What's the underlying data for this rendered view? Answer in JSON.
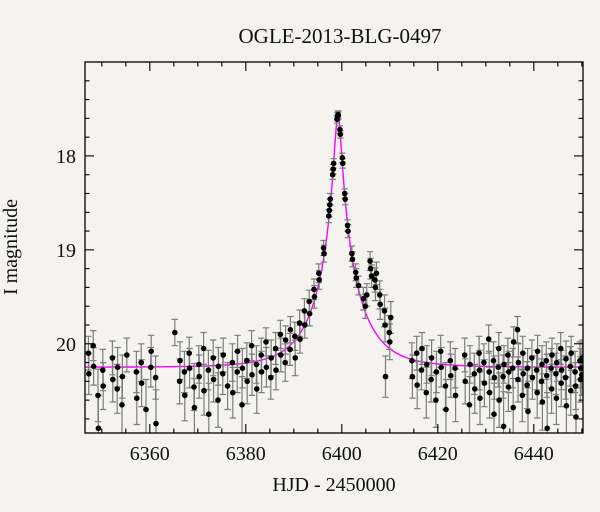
{
  "figure": {
    "background_color": "#f4f3f0",
    "frame_color": "#000000"
  },
  "chart_data": {
    "type": "scatter",
    "title": "OGLE-2013-BLG-0497",
    "xlabel": "HJD - 2450000",
    "ylabel": "I magnitude",
    "xlim": [
      6346.5,
      6450.25
    ],
    "ylim": [
      17.0,
      20.95
    ],
    "y_axis_inverted": true,
    "grid": false,
    "legend": null,
    "x_major_ticks": [
      6360,
      6380,
      6400,
      6420,
      6440
    ],
    "x_major_tick_labels": [
      "6360",
      "6380",
      "6400",
      "6420",
      "6440"
    ],
    "x_minor_tick_step": 5,
    "y_major_ticks": [
      18,
      19,
      20
    ],
    "y_major_tick_labels": [
      "18",
      "19",
      "20"
    ],
    "y_minor_tick_step": 0.2,
    "point_color": "#000000",
    "errorbar_color": "#7d7d7d",
    "model": {
      "name": "point-lens-model-curve",
      "type": "paczynski",
      "t0": 6399.2,
      "tE": 8.5,
      "u0": 0.085,
      "I_baseline": 20.25,
      "I_peak": 17.57,
      "color": "#ff00ff"
    },
    "points_format": [
      "hjd_minus_2450000",
      "I_mag",
      "I_err"
    ],
    "points": [
      [
        6347.2,
        20.1,
        0.18
      ],
      [
        6347.3,
        20.32,
        0.22
      ],
      [
        6348.2,
        20.02,
        0.16
      ],
      [
        6348.3,
        20.24,
        0.2
      ],
      [
        6349.2,
        20.55,
        0.28
      ],
      [
        6349.3,
        20.9,
        0.35
      ],
      [
        6350.2,
        20.28,
        0.22
      ],
      [
        6350.3,
        20.45,
        0.25
      ],
      [
        6352.2,
        20.15,
        0.18
      ],
      [
        6352.3,
        20.38,
        0.24
      ],
      [
        6353.2,
        20.48,
        0.26
      ],
      [
        6353.3,
        20.25,
        0.21
      ],
      [
        6354.2,
        20.65,
        0.3
      ],
      [
        6354.3,
        20.35,
        0.23
      ],
      [
        6355.2,
        20.12,
        0.18
      ],
      [
        6357.2,
        20.3,
        0.22
      ],
      [
        6357.3,
        20.58,
        0.28
      ],
      [
        6358.2,
        20.2,
        0.2
      ],
      [
        6358.3,
        20.42,
        0.25
      ],
      [
        6359.2,
        20.7,
        0.32
      ],
      [
        6360.2,
        20.25,
        0.21
      ],
      [
        6360.3,
        20.08,
        0.17
      ],
      [
        6361.2,
        20.36,
        0.23
      ],
      [
        6361.3,
        20.85,
        0.36
      ],
      [
        6365.2,
        19.88,
        0.14
      ],
      [
        6366.2,
        20.4,
        0.24
      ],
      [
        6366.3,
        20.18,
        0.2
      ],
      [
        6367.2,
        20.3,
        0.22
      ],
      [
        6367.3,
        20.55,
        0.27
      ],
      [
        6368.2,
        20.1,
        0.17
      ],
      [
        6368.3,
        20.26,
        0.21
      ],
      [
        6369.2,
        20.46,
        0.25
      ],
      [
        6369.3,
        20.68,
        0.31
      ],
      [
        6370.2,
        20.22,
        0.2
      ],
      [
        6370.3,
        20.35,
        0.23
      ],
      [
        6371.2,
        20.05,
        0.17
      ],
      [
        6371.3,
        20.5,
        0.26
      ],
      [
        6372.2,
        20.28,
        0.21
      ],
      [
        6372.3,
        20.75,
        0.33
      ],
      [
        6373.2,
        20.15,
        0.19
      ],
      [
        6373.3,
        20.38,
        0.24
      ],
      [
        6374.2,
        20.6,
        0.29
      ],
      [
        6374.3,
        20.24,
        0.2
      ],
      [
        6375.2,
        20.32,
        0.22
      ],
      [
        6375.3,
        20.12,
        0.18
      ],
      [
        6376.2,
        20.45,
        0.25
      ],
      [
        6377.2,
        20.2,
        0.2
      ],
      [
        6377.3,
        20.52,
        0.27
      ],
      [
        6378.2,
        20.3,
        0.22
      ],
      [
        6378.3,
        20.08,
        0.17
      ],
      [
        6379.2,
        20.65,
        0.3
      ],
      [
        6379.3,
        20.26,
        0.21
      ],
      [
        6380.2,
        20.18,
        0.19
      ],
      [
        6380.3,
        20.4,
        0.24
      ],
      [
        6381.2,
        20.02,
        0.16
      ],
      [
        6381.3,
        20.33,
        0.22
      ],
      [
        6382.2,
        20.22,
        0.2
      ],
      [
        6382.3,
        20.48,
        0.26
      ],
      [
        6383.2,
        20.12,
        0.18
      ],
      [
        6383.3,
        20.3,
        0.22
      ],
      [
        6384.2,
        19.98,
        0.15
      ],
      [
        6384.3,
        20.25,
        0.21
      ],
      [
        6385.2,
        20.36,
        0.23
      ],
      [
        6385.3,
        20.15,
        0.19
      ],
      [
        6386.2,
        20.05,
        0.17
      ],
      [
        6386.3,
        20.28,
        0.21
      ],
      [
        6387.2,
        19.9,
        0.15
      ],
      [
        6387.3,
        20.12,
        0.18
      ],
      [
        6388.2,
        20.2,
        0.2
      ],
      [
        6388.3,
        19.96,
        0.15
      ],
      [
        6389.2,
        20.06,
        0.17
      ],
      [
        6389.3,
        19.85,
        0.14
      ],
      [
        6390.2,
        19.92,
        0.15
      ],
      [
        6390.3,
        20.15,
        0.19
      ],
      [
        6391.2,
        19.78,
        0.14
      ],
      [
        6391.3,
        19.95,
        0.15
      ],
      [
        6392.2,
        19.65,
        0.13
      ],
      [
        6392.3,
        19.8,
        0.14
      ],
      [
        6393.2,
        19.55,
        0.12
      ],
      [
        6393.3,
        19.68,
        0.13
      ],
      [
        6394.2,
        19.42,
        0.11
      ],
      [
        6394.3,
        19.5,
        0.12
      ],
      [
        6395.2,
        19.25,
        0.1
      ],
      [
        6395.3,
        19.32,
        0.1
      ],
      [
        6396.2,
        18.98,
        0.08
      ],
      [
        6396.3,
        19.04,
        0.09
      ],
      [
        6397.3,
        18.64,
        0.07
      ],
      [
        6397.4,
        18.58,
        0.07
      ],
      [
        6397.5,
        18.52,
        0.06
      ],
      [
        6397.6,
        18.46,
        0.06
      ],
      [
        6398.1,
        18.2,
        0.05
      ],
      [
        6398.2,
        18.14,
        0.05
      ],
      [
        6398.3,
        18.08,
        0.05
      ],
      [
        6399.0,
        17.61,
        0.04
      ],
      [
        6399.1,
        17.58,
        0.04
      ],
      [
        6399.2,
        17.56,
        0.04
      ],
      [
        6399.3,
        17.57,
        0.04
      ],
      [
        6399.6,
        17.72,
        0.04
      ],
      [
        6399.7,
        17.77,
        0.04
      ],
      [
        6400.1,
        18.02,
        0.05
      ],
      [
        6400.2,
        18.08,
        0.05
      ],
      [
        6400.6,
        18.4,
        0.05
      ],
      [
        6400.7,
        18.46,
        0.06
      ],
      [
        6401.2,
        18.74,
        0.06
      ],
      [
        6401.3,
        18.8,
        0.07
      ],
      [
        6402.1,
        19.04,
        0.08
      ],
      [
        6402.2,
        19.1,
        0.08
      ],
      [
        6402.9,
        19.24,
        0.09
      ],
      [
        6403.0,
        19.3,
        0.1
      ],
      [
        6403.5,
        19.38,
        0.1
      ],
      [
        6404.5,
        19.52,
        0.12
      ],
      [
        6404.9,
        19.6,
        0.13
      ],
      [
        6405.2,
        19.48,
        0.12
      ],
      [
        6405.9,
        19.12,
        0.1
      ],
      [
        6406.0,
        19.2,
        0.11
      ],
      [
        6406.2,
        19.28,
        0.12
      ],
      [
        6406.9,
        19.32,
        0.13
      ],
      [
        6407.0,
        19.4,
        0.14
      ],
      [
        6407.2,
        19.25,
        0.12
      ],
      [
        6407.9,
        19.48,
        0.15
      ],
      [
        6408.0,
        19.58,
        0.16
      ],
      [
        6408.9,
        19.65,
        0.17
      ],
      [
        6409.0,
        19.8,
        0.18
      ],
      [
        6409.1,
        20.35,
        0.22
      ],
      [
        6409.9,
        19.88,
        0.18
      ],
      [
        6410.0,
        19.98,
        0.19
      ],
      [
        6410.2,
        19.72,
        0.17
      ],
      [
        6414.6,
        20.18,
        0.19
      ],
      [
        6414.7,
        20.35,
        0.23
      ],
      [
        6415.6,
        20.1,
        0.18
      ],
      [
        6415.7,
        20.44,
        0.25
      ],
      [
        6416.6,
        20.28,
        0.21
      ],
      [
        6416.7,
        20.05,
        0.17
      ],
      [
        6417.6,
        20.52,
        0.27
      ],
      [
        6417.7,
        20.22,
        0.2
      ],
      [
        6418.6,
        20.38,
        0.24
      ],
      [
        6418.7,
        20.15,
        0.19
      ],
      [
        6419.6,
        20.6,
        0.29
      ],
      [
        6419.7,
        20.3,
        0.22
      ],
      [
        6420.6,
        20.08,
        0.17
      ],
      [
        6420.7,
        20.25,
        0.21
      ],
      [
        6421.6,
        20.45,
        0.25
      ],
      [
        6421.7,
        20.7,
        0.32
      ],
      [
        6422.6,
        20.18,
        0.2
      ],
      [
        6422.7,
        20.34,
        0.23
      ],
      [
        6423.6,
        20.26,
        0.21
      ],
      [
        6423.7,
        20.55,
        0.28
      ],
      [
        6425.6,
        20.12,
        0.18
      ],
      [
        6425.7,
        20.4,
        0.24
      ],
      [
        6426.6,
        20.65,
        0.3
      ],
      [
        6426.7,
        20.22,
        0.2
      ],
      [
        6427.6,
        20.32,
        0.22
      ],
      [
        6427.7,
        20.48,
        0.26
      ],
      [
        6428.6,
        20.1,
        0.18
      ],
      [
        6428.7,
        20.28,
        0.21
      ],
      [
        6428.8,
        20.58,
        0.28
      ],
      [
        6429.6,
        20.2,
        0.2
      ],
      [
        6429.7,
        20.42,
        0.25
      ],
      [
        6430.6,
        19.95,
        0.15
      ],
      [
        6430.7,
        20.3,
        0.22
      ],
      [
        6430.8,
        20.52,
        0.27
      ],
      [
        6431.6,
        20.18,
        0.2
      ],
      [
        6431.7,
        20.75,
        0.33
      ],
      [
        6431.8,
        20.36,
        0.23
      ],
      [
        6432.6,
        20.25,
        0.21
      ],
      [
        6432.7,
        20.05,
        0.17
      ],
      [
        6432.8,
        20.6,
        0.29
      ],
      [
        6433.6,
        20.35,
        0.23
      ],
      [
        6433.7,
        20.88,
        0.37
      ],
      [
        6433.8,
        20.22,
        0.2
      ],
      [
        6434.6,
        20.12,
        0.18
      ],
      [
        6434.7,
        20.46,
        0.26
      ],
      [
        6434.8,
        20.3,
        0.22
      ],
      [
        6435.6,
        20.26,
        0.21
      ],
      [
        6435.7,
        20.68,
        0.31
      ],
      [
        6435.8,
        19.98,
        0.16
      ],
      [
        6436.6,
        19.85,
        0.14
      ],
      [
        6436.7,
        20.38,
        0.24
      ],
      [
        6436.8,
        20.2,
        0.2
      ],
      [
        6437.6,
        20.55,
        0.28
      ],
      [
        6437.7,
        20.1,
        0.18
      ],
      [
        6437.8,
        20.32,
        0.22
      ],
      [
        6438.6,
        20.44,
        0.25
      ],
      [
        6438.7,
        20.26,
        0.21
      ],
      [
        6438.8,
        20.72,
        0.32
      ],
      [
        6439.6,
        20.15,
        0.19
      ],
      [
        6439.7,
        20.36,
        0.23
      ],
      [
        6440.6,
        20.28,
        0.21
      ],
      [
        6440.7,
        20.52,
        0.27
      ],
      [
        6440.8,
        20.08,
        0.17
      ],
      [
        6441.6,
        20.4,
        0.24
      ],
      [
        6441.7,
        20.22,
        0.2
      ],
      [
        6441.8,
        20.62,
        0.3
      ],
      [
        6442.6,
        20.18,
        0.2
      ],
      [
        6442.7,
        20.34,
        0.23
      ],
      [
        6442.8,
        20.9,
        0.38
      ],
      [
        6443.6,
        20.26,
        0.21
      ],
      [
        6443.7,
        20.48,
        0.26
      ],
      [
        6443.8,
        20.12,
        0.18
      ],
      [
        6444.6,
        20.32,
        0.22
      ],
      [
        6444.7,
        20.58,
        0.28
      ],
      [
        6444.8,
        20.2,
        0.2
      ],
      [
        6445.6,
        20.05,
        0.17
      ],
      [
        6445.7,
        20.42,
        0.25
      ],
      [
        6445.8,
        20.28,
        0.21
      ],
      [
        6446.6,
        20.36,
        0.23
      ],
      [
        6446.7,
        20.16,
        0.19
      ],
      [
        6446.8,
        20.66,
        0.3
      ],
      [
        6447.6,
        20.24,
        0.21
      ],
      [
        6447.7,
        20.5,
        0.26
      ],
      [
        6447.8,
        20.1,
        0.18
      ],
      [
        6448.6,
        20.3,
        0.22
      ],
      [
        6448.7,
        20.45,
        0.25
      ],
      [
        6448.8,
        20.78,
        0.34
      ],
      [
        6449.6,
        20.18,
        0.2
      ],
      [
        6449.7,
        20.38,
        0.24
      ],
      [
        6449.8,
        20.26,
        0.21
      ],
      [
        6450.0,
        20.33,
        0.22
      ],
      [
        6450.1,
        20.15,
        0.19
      ]
    ]
  }
}
